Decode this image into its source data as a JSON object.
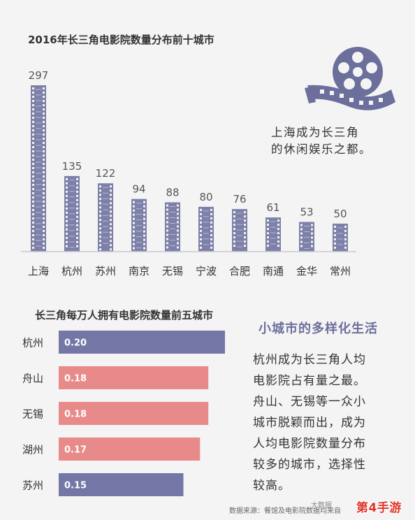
{
  "top_title": "2016年长三角电影院数量分布前十城市",
  "tagline": [
    "上海成为长三角",
    "的休闲娱乐之都。"
  ],
  "bottom_title": "长三角每万人拥有电影院数量前五城市",
  "side_title": "小城市的多样化生活",
  "side_body": [
    "杭州成为长三角人均",
    "电影院占有量之最。",
    "舟山、无锡等一众小",
    "城市脱颖而出，成为",
    "人均电影院数量分布",
    "较多的城市，选择性",
    "较高。"
  ],
  "source": "数据来源：餐馆及电影院数据均来自",
  "watermark_small": "大数据",
  "watermark": "第4手游",
  "colors": {
    "bar_fill": "#7d80a8",
    "bar_dark": "#4a4c6e",
    "blue_bar": "#7477a6",
    "pink_bar": "#e88a8a",
    "icon": "#6c6f9c"
  },
  "chart_data": [
    {
      "type": "bar",
      "title": "2016年长三角电影院数量分布前十城市",
      "categories": [
        "上海",
        "杭州",
        "苏州",
        "南京",
        "无锡",
        "宁波",
        "合肥",
        "南通",
        "金华",
        "常州"
      ],
      "values": [
        297,
        135,
        122,
        94,
        88,
        80,
        76,
        61,
        53,
        50
      ],
      "ylim": [
        0,
        297
      ],
      "grid": false
    },
    {
      "type": "bar",
      "orientation": "horizontal",
      "title": "长三角每万人拥有电影院数量前五城市",
      "categories": [
        "杭州",
        "舟山",
        "无锡",
        "湖州",
        "苏州"
      ],
      "values": [
        0.2,
        0.18,
        0.18,
        0.17,
        0.15
      ],
      "labels": [
        "0.20",
        "0.18",
        "0.18",
        "0.17",
        "0.15"
      ],
      "bar_colors": [
        "#7477a6",
        "#e88a8a",
        "#e88a8a",
        "#e88a8a",
        "#7477a6"
      ],
      "xlim": [
        0,
        0.2
      ],
      "grid": false
    }
  ]
}
